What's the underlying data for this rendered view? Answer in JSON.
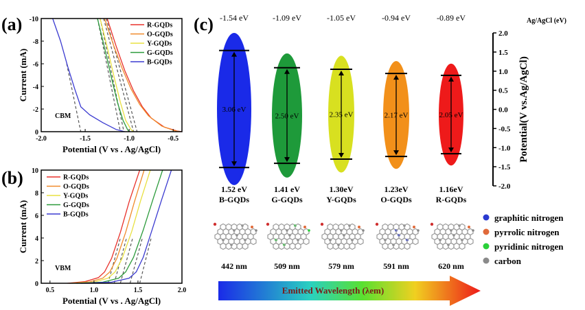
{
  "chart_data": [
    {
      "panel": "(a)",
      "type": "line",
      "xlabel": "Potential (V vs . Ag/AgCl)",
      "ylabel": "Current (mA)",
      "xlim": [
        -2.0,
        -0.4
      ],
      "ylim": [
        0,
        -10
      ],
      "xticks": [
        "-2.0",
        "-1.5",
        "-1.0",
        "-0.5"
      ],
      "xtick_values": [
        -2.0,
        -1.5,
        -1.0,
        -0.5
      ],
      "yticks": [
        "0",
        "-2",
        "-4",
        "-6",
        "-8",
        "-10"
      ],
      "ytick_values": [
        0,
        -2,
        -4,
        -6,
        -8,
        -10
      ],
      "annotation": "CBM",
      "legend": "top-right",
      "series": [
        {
          "name": "R-GQDs",
          "color": "#e8302a",
          "x": [
            -1.25,
            -1.15,
            -1.05,
            -0.95,
            -0.85,
            -0.75,
            -0.6,
            -0.45,
            -0.4
          ],
          "y": [
            -10,
            -7.6,
            -5.4,
            -3.6,
            -2.2,
            -1.2,
            -0.4,
            -0.05,
            0
          ],
          "tangent": [
            [
              -1.26,
              -10
            ],
            [
              -0.91,
              0
            ]
          ]
        },
        {
          "name": "O-GQDs",
          "color": "#f08a2a",
          "x": [
            -1.28,
            -1.18,
            -1.08,
            -0.98,
            -0.88,
            -0.78,
            -0.63,
            -0.48,
            -0.42
          ],
          "y": [
            -10,
            -7.7,
            -5.6,
            -3.8,
            -2.4,
            -1.4,
            -0.5,
            -0.08,
            0
          ],
          "tangent": [
            [
              -1.29,
              -10
            ],
            [
              -0.95,
              0
            ]
          ]
        },
        {
          "name": "Y-GQDs",
          "color": "#e8e040",
          "x": [
            -1.33,
            -1.25,
            -1.17,
            -1.1,
            -1.04,
            -0.98,
            -0.95
          ],
          "y": [
            -10,
            -7.5,
            -4.8,
            -2.6,
            -1.0,
            -0.2,
            0
          ],
          "tangent": [
            [
              -1.33,
              -10
            ],
            [
              -1.06,
              0
            ]
          ]
        },
        {
          "name": "G-GQDs",
          "color": "#2a9a3a",
          "x": [
            -1.36,
            -1.28,
            -1.2,
            -1.13,
            -1.07,
            -1.02,
            -1.0
          ],
          "y": [
            -10,
            -7.4,
            -4.7,
            -2.5,
            -1.0,
            -0.2,
            0
          ],
          "tangent": [
            [
              -1.36,
              -10
            ],
            [
              -1.1,
              0
            ]
          ]
        },
        {
          "name": "B-GQDs",
          "color": "#3a3ad0",
          "x": [
            -1.87,
            -1.78,
            -1.7,
            -1.62,
            -1.55,
            -1.45,
            -1.3,
            -1.15,
            -1.05
          ],
          "y": [
            -10,
            -8,
            -5.8,
            -3.8,
            -2.2,
            -1.5,
            -0.8,
            -0.2,
            0
          ],
          "tangent": [
            [
              -1.71,
              -6
            ],
            [
              -1.55,
              0
            ]
          ]
        }
      ]
    },
    {
      "panel": "(b)",
      "type": "line",
      "xlabel": "Potential (V vs . Ag/AgCl)",
      "ylabel": "Current (mA)",
      "xlim": [
        0.4,
        2.0
      ],
      "ylim": [
        0,
        10
      ],
      "xticks": [
        "0.5",
        "1.0",
        "1.5",
        "2.0"
      ],
      "xtick_values": [
        0.5,
        1.0,
        1.5,
        2.0
      ],
      "yticks": [
        "0",
        "2",
        "4",
        "6",
        "8",
        "10"
      ],
      "ytick_values": [
        0,
        2,
        4,
        6,
        8,
        10
      ],
      "annotation": "VBM",
      "legend": "top-left",
      "series": [
        {
          "name": "R-GQDs",
          "color": "#e8302a",
          "x": [
            0.7,
            0.9,
            1.05,
            1.12,
            1.2,
            1.3,
            1.4,
            1.52
          ],
          "y": [
            0,
            0.15,
            0.5,
            1.0,
            2.2,
            4.5,
            7.2,
            10
          ],
          "tangent": [
            [
              1.16,
              0
            ],
            [
              1.3,
              4
            ]
          ]
        },
        {
          "name": "O-GQDs",
          "color": "#f08a2a",
          "x": [
            0.72,
            0.95,
            1.1,
            1.18,
            1.26,
            1.36,
            1.46,
            1.57
          ],
          "y": [
            0,
            0.12,
            0.45,
            1.0,
            2.2,
            4.5,
            7.2,
            10
          ],
          "tangent": [
            [
              1.23,
              0
            ],
            [
              1.37,
              4
            ]
          ]
        },
        {
          "name": "Y-GQDs",
          "color": "#e8e040",
          "x": [
            0.75,
            1.0,
            1.16,
            1.24,
            1.32,
            1.43,
            1.53,
            1.64
          ],
          "y": [
            0,
            0.1,
            0.45,
            1.0,
            2.2,
            4.6,
            7.3,
            10
          ],
          "tangent": [
            [
              1.3,
              0
            ],
            [
              1.44,
              4
            ]
          ]
        },
        {
          "name": "G-GQDs",
          "color": "#2a9a3a",
          "x": [
            0.8,
            1.1,
            1.28,
            1.36,
            1.45,
            1.56,
            1.67,
            1.78
          ],
          "y": [
            0,
            0.1,
            0.45,
            1.0,
            2.3,
            4.7,
            7.4,
            10
          ],
          "tangent": [
            [
              1.41,
              0
            ],
            [
              1.55,
              4
            ]
          ]
        },
        {
          "name": "B-GQDs",
          "color": "#3a3ad0",
          "x": [
            0.85,
            1.2,
            1.4,
            1.48,
            1.56,
            1.66,
            1.77,
            1.88
          ],
          "y": [
            0,
            0.1,
            0.45,
            1.0,
            2.3,
            4.7,
            7.4,
            10
          ],
          "tangent": [
            [
              1.52,
              0
            ],
            [
              1.65,
              4
            ]
          ]
        }
      ]
    },
    {
      "panel": "(c)",
      "type": "diagram",
      "axis_title": "Ag/AgCl (eV)",
      "ylabel": "Potential(V vs.Ag/AgCl)",
      "ylim": [
        -2.0,
        2.0
      ],
      "yticks": [
        "2.0",
        "1.5",
        "1.0",
        "0.5",
        "0.0",
        "-0.5",
        "-1.0",
        "-1.5",
        "-2.0"
      ],
      "ytick_values": [
        2.0,
        1.5,
        1.0,
        0.5,
        0.0,
        -0.5,
        -1.0,
        -1.5,
        -2.0
      ],
      "samples": [
        {
          "name": "B-GQDs",
          "color": "#1a2ae8",
          "top_label": "-1.54 eV",
          "top": -1.54,
          "gap_label": "3.06 eV",
          "bottom_label": "1.52 eV",
          "bottom": 1.52,
          "wavelength": "442 nm"
        },
        {
          "name": "G-GQDs",
          "color": "#1e9a3a",
          "top_label": "-1.09 eV",
          "top": -1.09,
          "gap_label": "2.50 eV",
          "bottom_label": "1.41 eV",
          "bottom": 1.41,
          "wavelength": "509 nm"
        },
        {
          "name": "Y-GQDs",
          "color": "#d8e020",
          "top_label": "-1.05 eV",
          "top": -1.05,
          "gap_label": "2.35 eV",
          "bottom_label": "1.30eV",
          "bottom": 1.3,
          "wavelength": "579 nm"
        },
        {
          "name": "O-GQDs",
          "color": "#f2901a",
          "top_label": "-0.94 eV",
          "top": -0.94,
          "gap_label": "2.17 eV",
          "bottom_label": "1.23eV",
          "bottom": 1.23,
          "wavelength": "591 nm"
        },
        {
          "name": "R-GQDs",
          "color": "#ee1a1a",
          "top_label": "-0.89 eV",
          "top": -0.89,
          "gap_label": "2.05 eV",
          "bottom_label": "1.16eV",
          "bottom": 1.16,
          "wavelength": "620 nm"
        }
      ],
      "atom_legend": [
        {
          "label": "graphitic nitrogen",
          "color": "#2a3ad0"
        },
        {
          "label": "pyrrolic nitrogen",
          "color": "#e06a3a"
        },
        {
          "label": "pyridinic nitrogen",
          "color": "#2ad03a"
        },
        {
          "label": "carbon",
          "color": "#8a8a8a"
        }
      ],
      "arrow_label": "Emitted Wavelength (λem)"
    }
  ]
}
